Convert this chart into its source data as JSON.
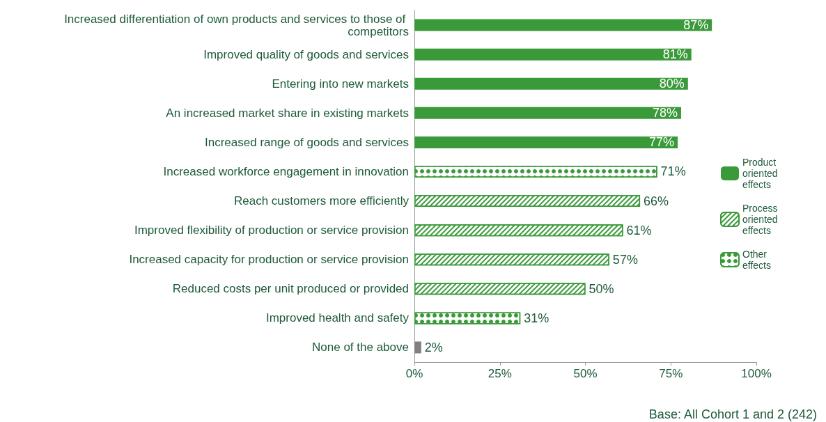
{
  "chart_data": {
    "type": "bar",
    "orientation": "horizontal",
    "stacked": true,
    "categories": [
      "Increased differentiation of own products and services to those of competitors",
      "Improved quality of goods and services",
      "Entering into new markets",
      "An increased market share in existing markets",
      "Increased range of goods and services",
      "Increased workforce engagement in innovation",
      "Reach customers more efficiently",
      "Improved flexibility of production or service provision",
      "Increased capacity for production or service provision",
      "Reduced costs per unit produced or provided",
      "Improved health and safety",
      "None of the above"
    ],
    "series": [
      {
        "name": "Product oriented effects",
        "color": "#3a9a3a",
        "values": [
          87,
          81,
          80,
          78,
          77,
          null,
          null,
          null,
          null,
          null,
          null,
          null
        ],
        "value_labels": [
          "87%",
          "81%",
          "80%",
          "78%",
          "77%",
          null,
          null,
          null,
          null,
          null,
          null,
          null
        ]
      },
      {
        "name": "Process oriented effects",
        "color": "#3a9a3a",
        "values": [
          null,
          null,
          null,
          null,
          null,
          null,
          66,
          61,
          57,
          50,
          null,
          null
        ],
        "value_labels": [
          null,
          null,
          null,
          null,
          null,
          null,
          "66%",
          "61%",
          "57%",
          "50%",
          null,
          null
        ]
      },
      {
        "name": "Other effects",
        "color": "#3a9a3a",
        "values": [
          null,
          null,
          null,
          null,
          null,
          71,
          null,
          null,
          null,
          null,
          31,
          null
        ],
        "value_labels": [
          null,
          null,
          null,
          null,
          null,
          "71%",
          null,
          null,
          null,
          null,
          "31%",
          null
        ]
      },
      {
        "color": "#808080",
        "values": [
          null,
          null,
          null,
          null,
          null,
          null,
          null,
          null,
          null,
          null,
          null,
          2
        ],
        "value_labels": [
          null,
          null,
          null,
          null,
          null,
          null,
          null,
          null,
          null,
          null,
          null,
          "2%"
        ]
      }
    ],
    "xlim": [
      0,
      100
    ],
    "xticks": [
      {
        "value": 0,
        "label": "0%"
      },
      {
        "value": 25,
        "label": "25%"
      },
      {
        "value": 50,
        "label": "50%"
      },
      {
        "value": 75,
        "label": "75%"
      },
      {
        "value": 100,
        "label": "100%"
      }
    ],
    "grid": false,
    "legend": "right",
    "annotations": [
      "Base: All Cohort 1 and 2 (242)"
    ]
  }
}
